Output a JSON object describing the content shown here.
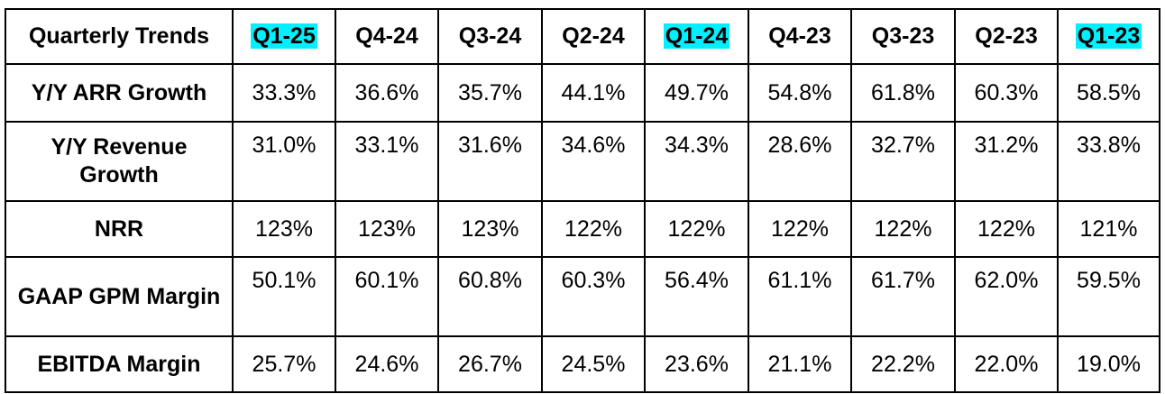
{
  "table": {
    "header_label": "Quarterly Trends",
    "columns": [
      {
        "label": "Q1-25",
        "highlighted": true
      },
      {
        "label": "Q4-24",
        "highlighted": false
      },
      {
        "label": "Q3-24",
        "highlighted": false
      },
      {
        "label": "Q2-24",
        "highlighted": false
      },
      {
        "label": "Q1-24",
        "highlighted": true
      },
      {
        "label": "Q4-23",
        "highlighted": false
      },
      {
        "label": "Q3-23",
        "highlighted": false
      },
      {
        "label": "Q2-23",
        "highlighted": false
      },
      {
        "label": "Q1-23",
        "highlighted": true
      }
    ],
    "highlight_color": "#00f0ff",
    "rows": [
      {
        "label": "Y/Y ARR Growth",
        "values": [
          "33.3%",
          "36.6%",
          "35.7%",
          "44.1%",
          "49.7%",
          "54.8%",
          "61.8%",
          "60.3%",
          "58.5%"
        ]
      },
      {
        "label": "Y/Y Revenue Growth",
        "values": [
          "31.0%",
          "33.1%",
          "31.6%",
          "34.6%",
          "34.3%",
          "28.6%",
          "32.7%",
          "31.2%",
          "33.8%"
        ]
      },
      {
        "label": "NRR",
        "values": [
          "123%",
          "123%",
          "123%",
          "122%",
          "122%",
          "122%",
          "122%",
          "122%",
          "121%"
        ]
      },
      {
        "label": "GAAP GPM Margin",
        "values": [
          "50.1%",
          "60.1%",
          "60.8%",
          "60.3%",
          "56.4%",
          "61.1%",
          "61.7%",
          "62.0%",
          "59.5%"
        ]
      },
      {
        "label": "EBITDA Margin",
        "values": [
          "25.7%",
          "24.6%",
          "26.7%",
          "24.5%",
          "23.6%",
          "21.1%",
          "22.2%",
          "22.0%",
          "19.0%"
        ]
      }
    ]
  }
}
